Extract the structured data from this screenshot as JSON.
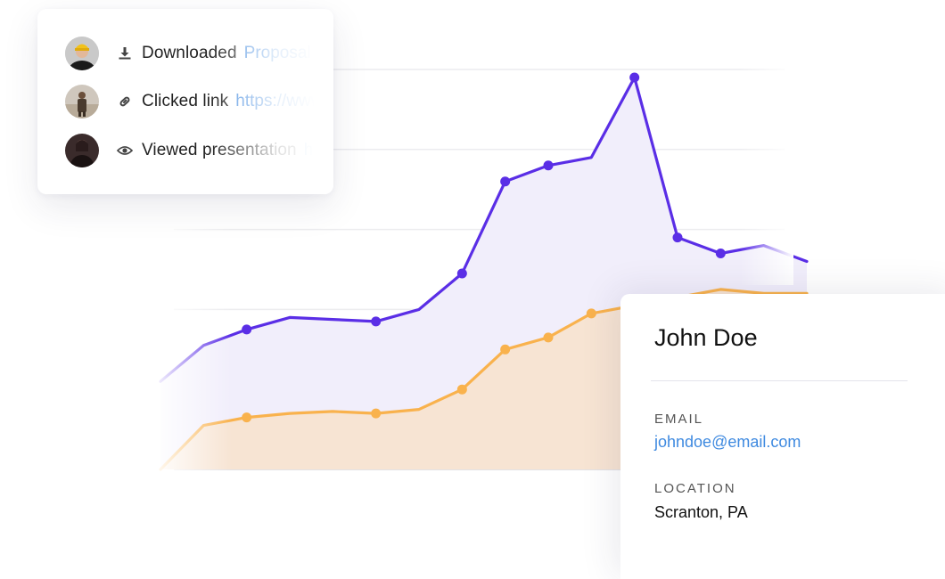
{
  "activity": {
    "items": [
      {
        "avatar": "avatar-person-yellow-hat",
        "icon": "download-icon",
        "label": "Downloaded",
        "target": "Proposal"
      },
      {
        "avatar": "avatar-person-standing",
        "icon": "link-icon",
        "label": "Clicked link",
        "target": "https://www"
      },
      {
        "avatar": "avatar-person-dark",
        "icon": "eye-icon",
        "label": "Viewed presentation",
        "target": "ho"
      }
    ]
  },
  "contact": {
    "name": "John Doe",
    "email_label": "EMAIL",
    "email": "johndoe@email.com",
    "location_label": "LOCATION",
    "location": "Scranton, PA"
  },
  "chart_data": {
    "type": "area",
    "grid": true,
    "x": [
      0,
      1,
      2,
      3,
      4,
      5,
      6,
      7,
      8,
      9,
      10,
      11,
      12,
      13,
      14,
      15
    ],
    "ylim": [
      0,
      100
    ],
    "series": [
      {
        "color": "#5a2ee6",
        "fill": "#f1eefb",
        "values": [
          22,
          31,
          35,
          38,
          37.5,
          37,
          40,
          49,
          72,
          76,
          78,
          98,
          58,
          54,
          56,
          52
        ],
        "markers": [
          2,
          5,
          7,
          8,
          9,
          11,
          12,
          13
        ]
      },
      {
        "color": "#f9b24d",
        "fill": "#f7e4d3",
        "values": [
          0,
          11,
          13,
          14,
          14.5,
          14,
          15,
          20,
          30,
          33,
          39,
          41,
          43,
          45,
          44,
          44
        ],
        "markers": [
          2,
          5,
          7,
          8,
          9,
          10,
          11
        ]
      }
    ]
  }
}
